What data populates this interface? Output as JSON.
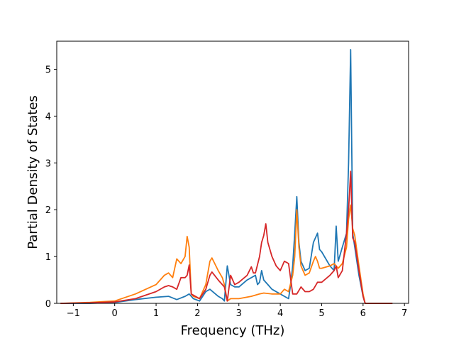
{
  "chart_data": {
    "type": "line",
    "title": "",
    "xlabel": "Frequency (THz)",
    "ylabel": "Partial Density of States",
    "xlim": [
      -1.4,
      7.1
    ],
    "ylim": [
      0,
      5.6
    ],
    "xticks": [
      -1,
      0,
      1,
      2,
      3,
      4,
      5,
      6,
      7
    ],
    "yticks": [
      0,
      1,
      2,
      3,
      4,
      5
    ],
    "grid": false,
    "legend": "none",
    "series": [
      {
        "color": "#1f77b4",
        "x": [
          -1.3,
          -0.6,
          0,
          0.5,
          1.0,
          1.3,
          1.5,
          1.7,
          1.8,
          1.9,
          2.05,
          2.2,
          2.3,
          2.5,
          2.6,
          2.65,
          2.72,
          2.8,
          2.9,
          3.0,
          3.2,
          3.3,
          3.4,
          3.45,
          3.5,
          3.55,
          3.6,
          3.7,
          3.8,
          4.0,
          4.1,
          4.2,
          4.25,
          4.3,
          4.35,
          4.4,
          4.45,
          4.5,
          4.6,
          4.7,
          4.8,
          4.9,
          4.95,
          5.0,
          5.2,
          5.3,
          5.35,
          5.4,
          5.5,
          5.6,
          5.65,
          5.7,
          5.75,
          5.8,
          5.9,
          6.0,
          6.05,
          6.7
        ],
        "y": [
          0,
          0,
          0.02,
          0.08,
          0.13,
          0.15,
          0.08,
          0.15,
          0.2,
          0.1,
          0.05,
          0.25,
          0.3,
          0.15,
          0.1,
          0.05,
          0.8,
          0.4,
          0.35,
          0.35,
          0.5,
          0.55,
          0.6,
          0.4,
          0.45,
          0.7,
          0.5,
          0.4,
          0.3,
          0.2,
          0.15,
          0.1,
          0.4,
          0.8,
          1.5,
          2.28,
          1.3,
          0.9,
          0.7,
          0.75,
          1.3,
          1.5,
          1.15,
          1.1,
          0.8,
          0.7,
          1.65,
          0.9,
          1.2,
          1.5,
          3.0,
          5.42,
          1.5,
          1.2,
          0.6,
          0.15,
          0,
          0
        ]
      },
      {
        "color": "#ff7f0e",
        "x": [
          -1.3,
          -0.6,
          0,
          0.5,
          1.0,
          1.2,
          1.3,
          1.4,
          1.5,
          1.55,
          1.6,
          1.7,
          1.75,
          1.8,
          1.85,
          1.9,
          2.05,
          2.2,
          2.3,
          2.35,
          2.5,
          2.6,
          2.65,
          2.72,
          2.8,
          3.0,
          3.3,
          3.5,
          3.6,
          3.8,
          4.0,
          4.1,
          4.2,
          4.3,
          4.35,
          4.4,
          4.45,
          4.5,
          4.6,
          4.7,
          4.8,
          4.85,
          4.9,
          4.95,
          5.0,
          5.2,
          5.3,
          5.4,
          5.5,
          5.6,
          5.65,
          5.7,
          5.75,
          5.8,
          5.9,
          6.0,
          6.05,
          6.7
        ],
        "y": [
          0,
          0.02,
          0.05,
          0.2,
          0.4,
          0.6,
          0.65,
          0.55,
          0.95,
          0.9,
          0.85,
          1.0,
          1.43,
          1.2,
          0.2,
          0.15,
          0.1,
          0.4,
          0.9,
          0.97,
          0.7,
          0.55,
          0.4,
          0.05,
          0.1,
          0.1,
          0.15,
          0.2,
          0.22,
          0.2,
          0.2,
          0.3,
          0.25,
          0.6,
          1.0,
          2.0,
          1.2,
          0.8,
          0.6,
          0.65,
          0.9,
          1.0,
          0.9,
          0.75,
          0.75,
          0.8,
          0.85,
          0.75,
          0.85,
          1.2,
          1.8,
          2.1,
          1.6,
          1.45,
          0.8,
          0.2,
          0,
          0
        ]
      },
      {
        "color": "#d62728",
        "x": [
          -1.3,
          -0.6,
          0,
          0.5,
          1.0,
          1.2,
          1.3,
          1.4,
          1.5,
          1.6,
          1.7,
          1.75,
          1.8,
          1.85,
          2.05,
          2.2,
          2.3,
          2.35,
          2.5,
          2.6,
          2.65,
          2.72,
          2.8,
          2.9,
          3.0,
          3.2,
          3.3,
          3.35,
          3.4,
          3.5,
          3.55,
          3.6,
          3.65,
          3.7,
          3.8,
          3.9,
          4.0,
          4.1,
          4.2,
          4.3,
          4.4,
          4.5,
          4.6,
          4.7,
          4.8,
          4.9,
          5.0,
          5.2,
          5.3,
          5.35,
          5.4,
          5.5,
          5.6,
          5.65,
          5.7,
          5.75,
          5.8,
          5.9,
          6.0,
          6.05,
          6.7
        ],
        "y": [
          0,
          0.01,
          0.03,
          0.1,
          0.25,
          0.35,
          0.38,
          0.35,
          0.3,
          0.55,
          0.55,
          0.6,
          0.82,
          0.2,
          0.1,
          0.3,
          0.6,
          0.67,
          0.5,
          0.4,
          0.35,
          0.05,
          0.6,
          0.4,
          0.45,
          0.6,
          0.78,
          0.65,
          0.65,
          1.0,
          1.3,
          1.45,
          1.7,
          1.3,
          1.0,
          0.8,
          0.7,
          0.9,
          0.85,
          0.2,
          0.2,
          0.35,
          0.25,
          0.25,
          0.3,
          0.45,
          0.45,
          0.6,
          0.7,
          0.8,
          0.55,
          0.7,
          1.5,
          2.0,
          2.82,
          1.4,
          1.3,
          0.7,
          0.15,
          0,
          0
        ]
      }
    ]
  }
}
